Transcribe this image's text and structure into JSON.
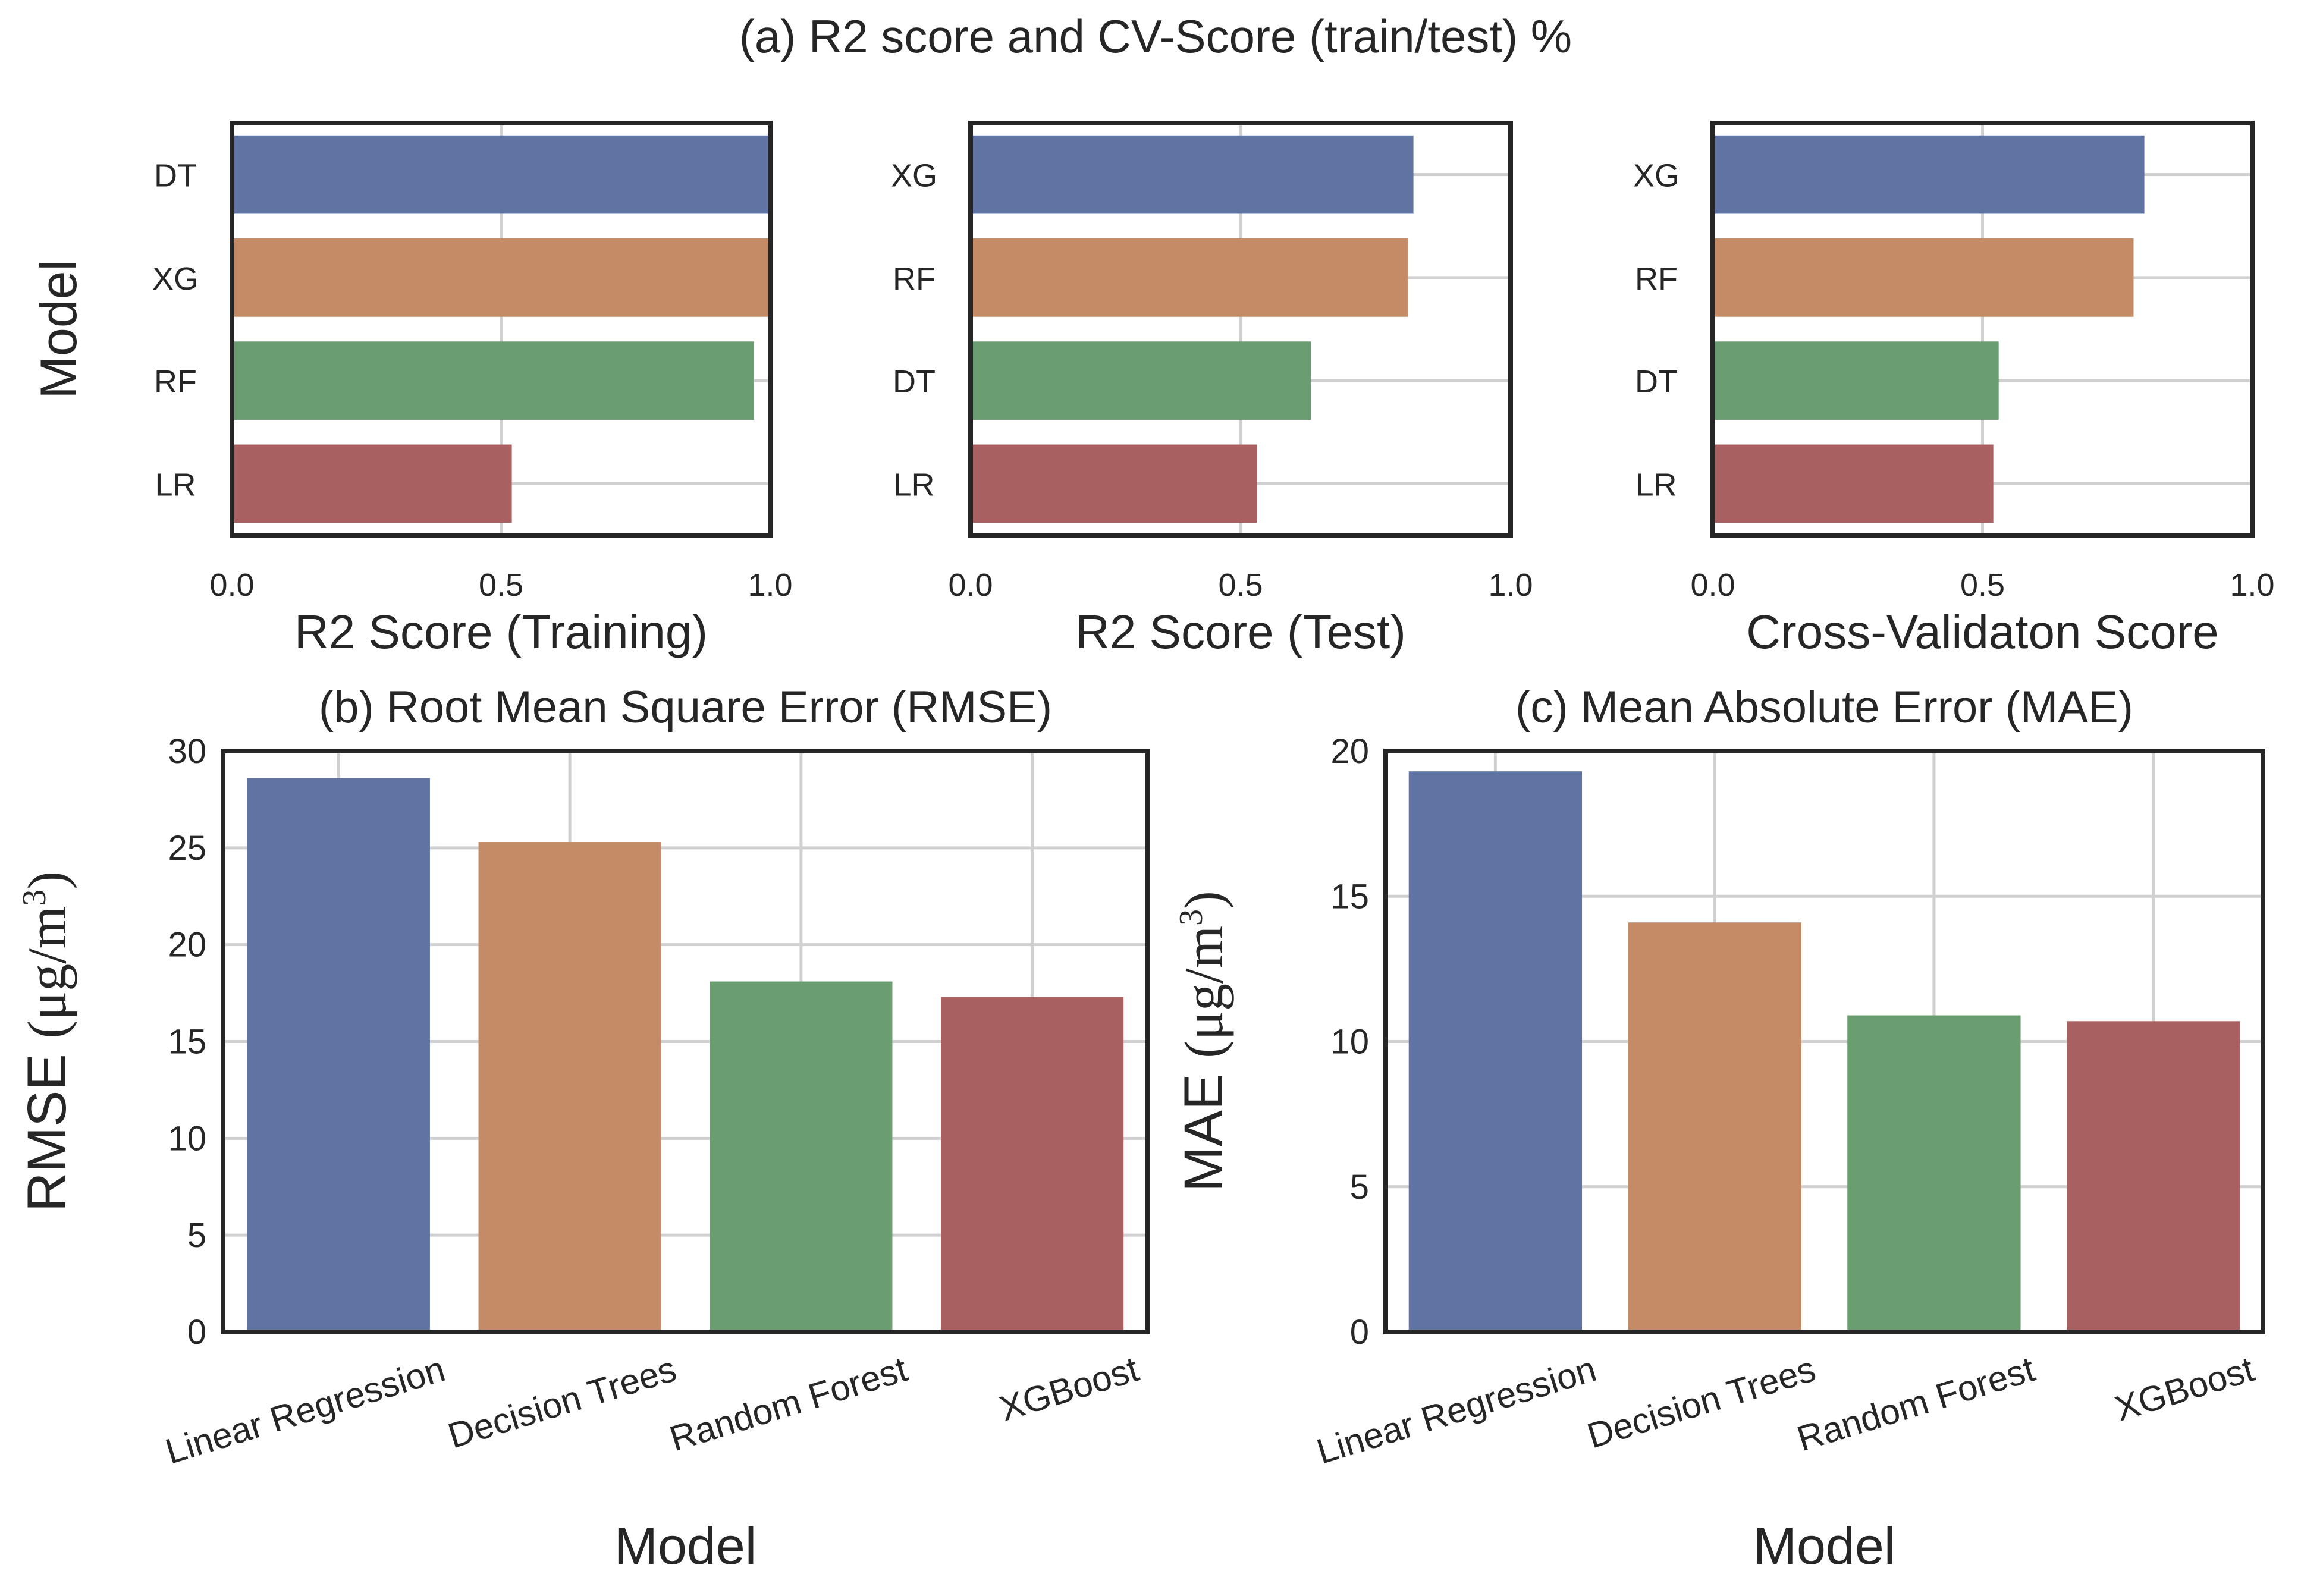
{
  "figure": {
    "title": "(a) R2 score and CV-Score (train/test) %"
  },
  "colors": {
    "blue": "#5f74a3",
    "orange": "#c38b66",
    "green": "#6a9d70",
    "red": "#a96060",
    "grid": "#d0d0d0",
    "frame": "#262626"
  },
  "chart_data": [
    {
      "id": "a1",
      "type": "bar",
      "orientation": "horizontal",
      "categories": [
        "DT",
        "XG",
        "RF",
        "LR"
      ],
      "values": [
        1.0,
        1.0,
        0.97,
        0.52
      ],
      "xlabel": "R2 Score (Training)",
      "ylabel": "Model",
      "xlim": [
        0,
        1.0
      ],
      "xticks": [
        "0.0",
        "0.5",
        "1.0"
      ],
      "bar_colors": [
        "#5f74a3",
        "#c38b66",
        "#6a9d70",
        "#a96060"
      ],
      "grid": true
    },
    {
      "id": "a2",
      "type": "bar",
      "orientation": "horizontal",
      "categories": [
        "XG",
        "RF",
        "DT",
        "LR"
      ],
      "values": [
        0.82,
        0.81,
        0.63,
        0.53
      ],
      "xlabel": "R2 Score (Test)",
      "ylabel": "",
      "xlim": [
        0,
        1.0
      ],
      "xticks": [
        "0.0",
        "0.5",
        "1.0"
      ],
      "bar_colors": [
        "#5f74a3",
        "#c38b66",
        "#6a9d70",
        "#a96060"
      ],
      "grid": true
    },
    {
      "id": "a3",
      "type": "bar",
      "orientation": "horizontal",
      "categories": [
        "XG",
        "RF",
        "DT",
        "LR"
      ],
      "values": [
        0.8,
        0.78,
        0.53,
        0.52
      ],
      "xlabel": "Cross-Validaton Score",
      "ylabel": "",
      "xlim": [
        0,
        1.0
      ],
      "xticks": [
        "0.0",
        "0.5",
        "1.0"
      ],
      "bar_colors": [
        "#5f74a3",
        "#c38b66",
        "#6a9d70",
        "#a96060"
      ],
      "grid": true
    },
    {
      "id": "b",
      "type": "bar",
      "orientation": "vertical",
      "title": "(b) Root Mean Square Error (RMSE)",
      "categories": [
        "Linear Regression",
        "Decision Trees",
        "Random Forest",
        "XGBoost"
      ],
      "values": [
        28.6,
        25.3,
        18.1,
        17.3
      ],
      "xlabel": "Model",
      "ylabel_main": "RMSE",
      "ylabel_unit": "(μg/m",
      "ylabel_sup": "3",
      "ylabel_close": ")",
      "ylim": [
        0,
        30
      ],
      "yticks": [
        "0",
        "5",
        "10",
        "15",
        "20",
        "25",
        "30"
      ],
      "bar_colors": [
        "#5f74a3",
        "#c38b66",
        "#6a9d70",
        "#a96060"
      ],
      "grid": true
    },
    {
      "id": "c",
      "type": "bar",
      "orientation": "vertical",
      "title": "(c) Mean Absolute Error (MAE)",
      "categories": [
        "Linear Regression",
        "Decision Trees",
        "Random Forest",
        "XGBoost"
      ],
      "values": [
        19.3,
        14.1,
        10.9,
        10.7
      ],
      "xlabel": "Model",
      "ylabel_main": "MAE",
      "ylabel_unit": "(μg/m",
      "ylabel_sup": "3",
      "ylabel_close": ")",
      "ylim": [
        0,
        20
      ],
      "yticks": [
        "0",
        "5",
        "10",
        "15",
        "20"
      ],
      "bar_colors": [
        "#5f74a3",
        "#c38b66",
        "#6a9d70",
        "#a96060"
      ],
      "grid": true
    }
  ]
}
